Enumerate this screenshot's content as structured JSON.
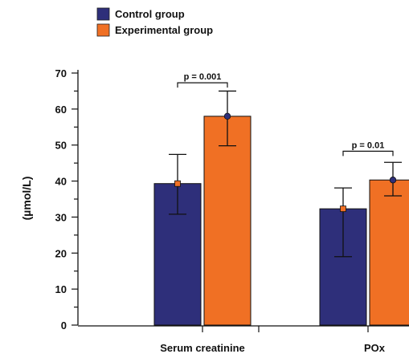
{
  "chart_data": {
    "type": "bar",
    "categories": [
      "Serum creatinine",
      "POx"
    ],
    "series": [
      {
        "name": "Control group",
        "color": "#2e2f7a",
        "marker_color": "#f07024",
        "values": [
          39.3,
          32.3
        ],
        "err_low": [
          30.8,
          19.0
        ],
        "err_high": [
          47.4,
          38.1
        ]
      },
      {
        "name": "Experimental group",
        "color": "#f07024",
        "marker_color": "#2e2f7a",
        "values": [
          58.0,
          40.3
        ],
        "err_low": [
          49.8,
          35.9
        ],
        "err_high": [
          65.0,
          45.2
        ]
      }
    ],
    "ylabel": "(µmol/L)",
    "xlabel": "",
    "ylim": [
      0,
      70
    ],
    "y_ticks": [
      "0",
      "10",
      "20",
      "30",
      "40",
      "50",
      "60",
      "70"
    ],
    "significance": [
      {
        "category": "Serum creatinine",
        "label": "p = 0.001"
      },
      {
        "category": "POx",
        "label": "p = 0.01"
      }
    ],
    "legend_position": "top-left",
    "grid": false
  }
}
